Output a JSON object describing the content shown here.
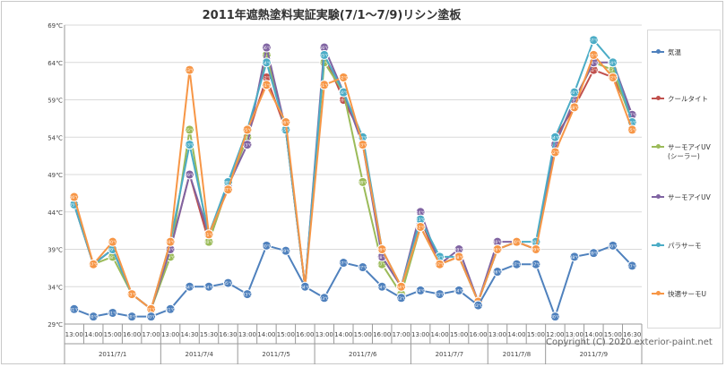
{
  "colors": {
    "気温": "#4f81bd",
    "クールタイト": "#c0504d",
    "サーモアイUV(シーラー)": "#9bbb59",
    "サーモアイUV": "#8064a2",
    "パラサーモ": "#4bacc6",
    "快適サーモU": "#f79646"
  },
  "copyright": "Copyright (C) 2020 exterior-paint.net",
  "chart_data": {
    "type": "line",
    "title": "2011年遮熱塗料実証実験(7/1～7/9)リシン塗板",
    "ylim": [
      29,
      69
    ],
    "ytick_labels": [
      "29℃",
      "34℃",
      "39℃",
      "44℃",
      "49℃",
      "54℃",
      "59℃",
      "64℃",
      "69℃"
    ],
    "categories": [
      "13:00",
      "14:00",
      "15:00",
      "16:00",
      "17:00",
      "13:00",
      "14:30",
      "15:30",
      "16:30",
      "13:00",
      "14:00",
      "15:00",
      "16:00",
      "13:00",
      "14:00",
      "15:00",
      "16:00",
      "17:00",
      "13:00",
      "14:00",
      "15:00",
      "16:00",
      "13:00",
      "14:00",
      "15:00",
      "12:00",
      "13:00",
      "14:00",
      "15:00",
      "16:30"
    ],
    "date_groups": [
      {
        "label": "2011/7/1",
        "start": 0,
        "end": 4
      },
      {
        "label": "2011/7/4",
        "start": 5,
        "end": 8
      },
      {
        "label": "2011/7/5",
        "start": 9,
        "end": 12
      },
      {
        "label": "2011/7/6",
        "start": 13,
        "end": 17
      },
      {
        "label": "2011/7/7",
        "start": 18,
        "end": 21
      },
      {
        "label": "2011/7/8",
        "start": 22,
        "end": 24
      },
      {
        "label": "2011/7/9",
        "start": 25,
        "end": 29
      }
    ],
    "series": [
      {
        "name": "気温",
        "legend_lines": [
          "気温"
        ],
        "values": [
          31,
          30,
          30.5,
          30,
          30,
          31,
          34,
          34,
          34.5,
          33,
          39.5,
          38.8,
          34,
          32.5,
          37.2,
          36.6,
          34,
          32.5,
          33.5,
          33,
          33.5,
          31.5,
          36,
          37,
          37,
          30,
          38,
          38.5,
          39.5,
          36.8
        ]
      },
      {
        "name": "クールタイト",
        "legend_lines": [
          "クールタイト"
        ],
        "values": [
          45,
          37,
          39,
          33,
          31,
          39,
          49,
          40,
          47.5,
          54,
          62,
          55,
          34,
          65,
          59,
          54,
          38,
          34,
          43,
          37,
          38,
          32,
          39,
          40,
          39,
          54,
          58,
          63,
          62,
          57
        ]
      },
      {
        "name": "サーモアイUV(シーラー)",
        "legend_lines": [
          "サーモアイUV",
          "(シーラー)"
        ],
        "values": [
          45,
          37,
          38,
          33,
          31,
          38,
          55,
          40,
          47.5,
          54,
          65,
          55,
          34,
          64,
          60,
          48,
          37,
          33,
          42,
          37,
          38,
          32,
          39,
          40,
          39,
          53,
          59,
          64,
          63,
          56
        ]
      },
      {
        "name": "サーモアイUV",
        "legend_lines": [
          "サーモアイUV"
        ],
        "values": [
          45,
          37,
          39,
          33,
          31,
          39,
          49,
          41,
          47.5,
          53,
          66,
          55,
          34,
          66,
          60,
          53,
          38,
          34,
          44,
          37,
          39,
          32,
          40,
          40,
          39,
          53,
          59,
          64,
          64,
          57
        ]
      },
      {
        "name": "パラサーモ",
        "legend_lines": [
          "パラサーモ"
        ],
        "values": [
          45,
          37,
          39,
          33,
          31,
          40,
          53,
          41,
          48,
          55,
          64,
          55,
          34,
          65,
          60,
          54,
          39,
          34,
          43,
          38,
          38,
          32,
          39,
          40,
          40,
          54,
          60,
          67,
          64,
          56
        ]
      },
      {
        "name": "快適サーモU",
        "legend_lines": [
          "快適サーモU"
        ],
        "values": [
          46,
          37,
          40,
          33,
          31,
          40,
          63,
          41,
          47,
          55,
          61,
          56,
          34,
          61,
          62,
          53,
          39,
          34,
          42,
          37,
          38,
          32,
          39,
          40,
          39,
          52,
          58,
          65,
          62,
          55
        ]
      }
    ]
  }
}
